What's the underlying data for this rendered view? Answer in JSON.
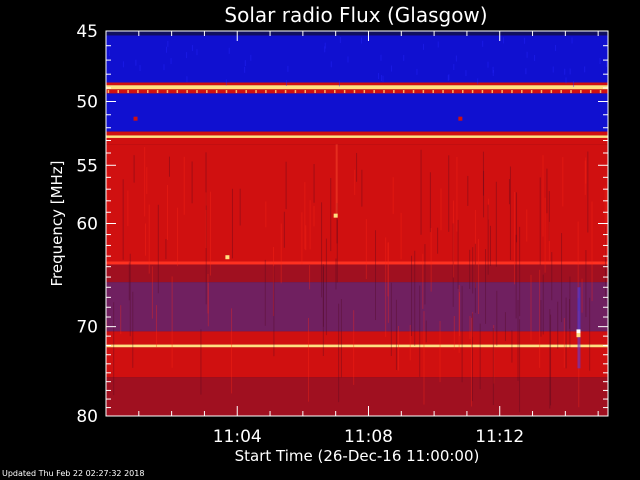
{
  "footer": {
    "updated_text": "Updated Thu Feb 22 02:27:32 2018"
  },
  "chart_data": {
    "type": "heatmap",
    "title": "Solar radio Flux (Glasgow)",
    "xlabel": "Start Time (26-Dec-16 11:00:00)",
    "ylabel": "Frequency [MHz]",
    "xlim_minutes": [
      0,
      15.3
    ],
    "ylim_log": true,
    "ylim": [
      45,
      80
    ],
    "x_ticks": [
      {
        "label": "11:04",
        "minute": 4
      },
      {
        "label": "11:08",
        "minute": 8
      },
      {
        "label": "11:12",
        "minute": 12
      }
    ],
    "y_ticks": [
      {
        "label": "45",
        "mhz": 45
      },
      {
        "label": "50",
        "mhz": 50
      },
      {
        "label": "55",
        "mhz": 55
      },
      {
        "label": "60",
        "mhz": 60
      },
      {
        "label": "70",
        "mhz": 70
      },
      {
        "label": "80",
        "mhz": 80
      }
    ],
    "y_minor_ticks": [
      46,
      47,
      48,
      49,
      51,
      52,
      53,
      54,
      56,
      57,
      58,
      59,
      61,
      62,
      63,
      64,
      65,
      66,
      67,
      68,
      69,
      71,
      72,
      73,
      74,
      75,
      76,
      77,
      78,
      79
    ],
    "x_minor_ticks": [
      1,
      2,
      3,
      5,
      6,
      7,
      9,
      10,
      11,
      13,
      14,
      15
    ],
    "colors": {
      "low": "#1010d0",
      "mid": "#d01010",
      "high": "#ffe080",
      "peak": "#ffffff"
    },
    "frequency_bands": [
      {
        "from_mhz": 45.0,
        "to_mhz": 45.3,
        "level": "low_dark"
      },
      {
        "from_mhz": 45.3,
        "to_mhz": 48.6,
        "level": "low"
      },
      {
        "from_mhz": 48.6,
        "to_mhz": 48.8,
        "level": "mid"
      },
      {
        "from_mhz": 48.8,
        "to_mhz": 49.1,
        "level": "high"
      },
      {
        "from_mhz": 49.1,
        "to_mhz": 49.4,
        "level": "mid"
      },
      {
        "from_mhz": 49.4,
        "to_mhz": 52.3,
        "level": "low"
      },
      {
        "from_mhz": 52.3,
        "to_mhz": 52.6,
        "level": "mid"
      },
      {
        "from_mhz": 52.6,
        "to_mhz": 52.8,
        "level": "high"
      },
      {
        "from_mhz": 52.8,
        "to_mhz": 53.3,
        "level": "mid"
      },
      {
        "from_mhz": 53.3,
        "to_mhz": 63.5,
        "level": "mid"
      },
      {
        "from_mhz": 63.5,
        "to_mhz": 63.8,
        "level": "mid_bright"
      },
      {
        "from_mhz": 63.8,
        "to_mhz": 65.5,
        "level": "mid_dark"
      },
      {
        "from_mhz": 65.5,
        "to_mhz": 70.5,
        "level": "mixed"
      },
      {
        "from_mhz": 70.5,
        "to_mhz": 71.9,
        "level": "mid"
      },
      {
        "from_mhz": 71.9,
        "to_mhz": 72.2,
        "level": "high"
      },
      {
        "from_mhz": 72.2,
        "to_mhz": 75.5,
        "level": "mid"
      },
      {
        "from_mhz": 75.5,
        "to_mhz": 80.0,
        "level": "mid_dark"
      }
    ],
    "bursts": [
      {
        "minute": 0.9,
        "mhz": 51.3,
        "level": "mid"
      },
      {
        "minute": 10.8,
        "mhz": 51.3,
        "level": "mid"
      },
      {
        "minute": 7.0,
        "mhz": 59.3,
        "level": "high"
      },
      {
        "minute": 3.7,
        "mhz": 63.1,
        "level": "high"
      },
      {
        "minute": 14.4,
        "mhz": 70.5,
        "level": "peak"
      },
      {
        "minute": 14.4,
        "mhz": 70.9,
        "level": "high"
      }
    ]
  }
}
